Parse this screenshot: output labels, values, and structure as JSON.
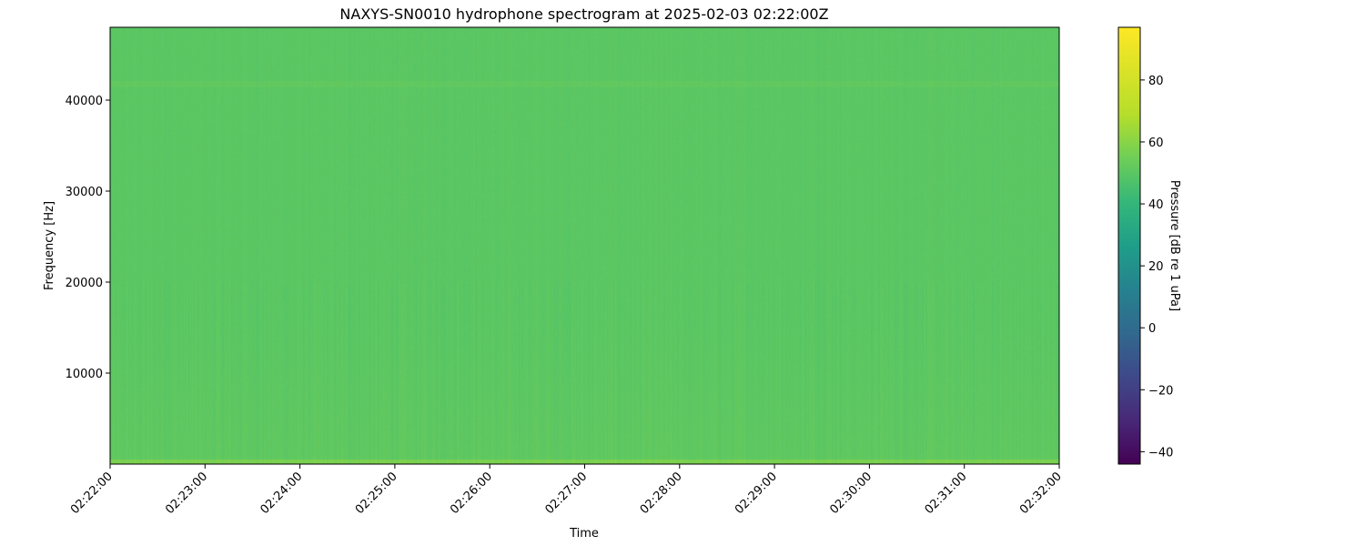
{
  "chart_data": {
    "type": "heatmap",
    "title": "NAXYS-SN0010 hydrophone spectrogram at 2025-02-03 02:22:00Z",
    "xlabel": "Time",
    "ylabel": "Frequency [Hz]",
    "x_ticks": [
      "02:22:00",
      "02:23:00",
      "02:24:00",
      "02:25:00",
      "02:26:00",
      "02:27:00",
      "02:28:00",
      "02:29:00",
      "02:30:00",
      "02:31:00",
      "02:32:00"
    ],
    "xlim": [
      "02:22:00",
      "02:32:00"
    ],
    "y_ticks": [
      10000,
      20000,
      30000,
      40000
    ],
    "ylim": [
      0,
      48000
    ],
    "colormap": "viridis",
    "colorbar": {
      "label": "Pressure [dB re 1 uPa]",
      "ticks": [
        -40,
        -20,
        0,
        20,
        40,
        60,
        80
      ],
      "range": [
        -44,
        97
      ]
    },
    "typical_level_db": 50,
    "grid": false
  }
}
